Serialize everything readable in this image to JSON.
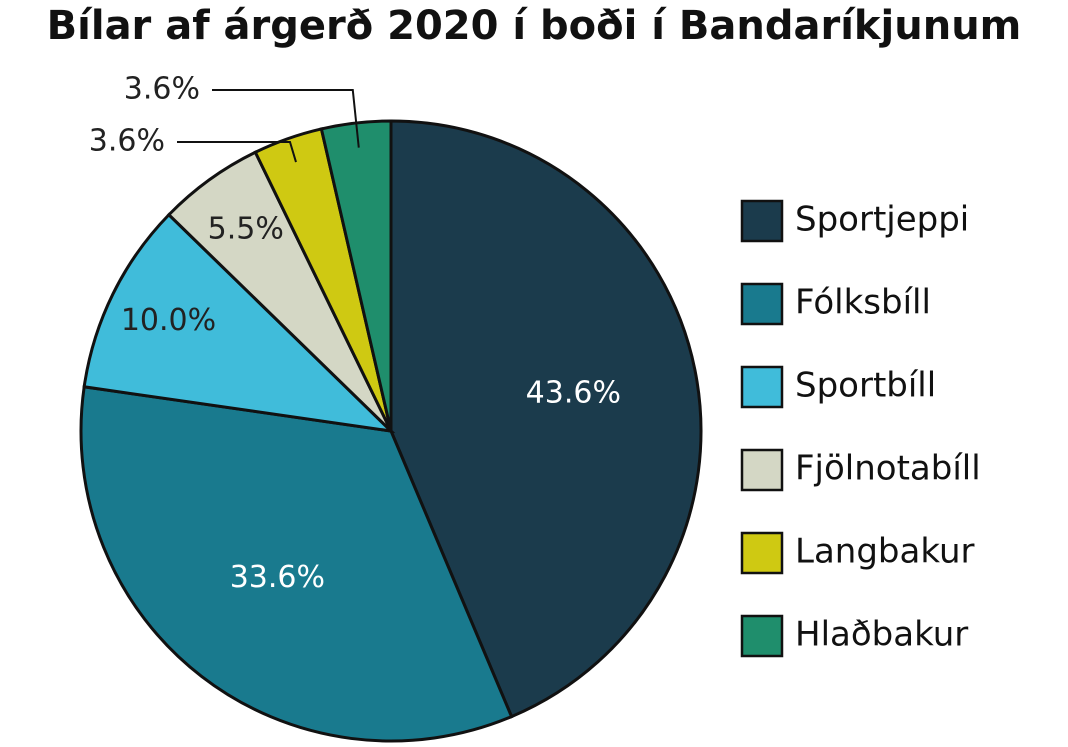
{
  "chart_data": {
    "type": "pie",
    "title": "Bílar af árgerð 2020 í boði í Bandaríkjunum",
    "categories": [
      "Sportjeppi",
      "Fólksbíll",
      "Sportbíll",
      "Fjölnotabíll",
      "Langbakur",
      "Hlaðbakur"
    ],
    "values": [
      43.6,
      33.6,
      10.0,
      5.5,
      3.6,
      3.6
    ],
    "value_labels": [
      "43.6%",
      "33.6%",
      "10.0%",
      "5.5%",
      "3.6%",
      "3.6%"
    ],
    "colors": [
      "#1b3b4c",
      "#197a8e",
      "#40bcda",
      "#d4d7c5",
      "#cfc912",
      "#1f8e6c"
    ],
    "legend": "right"
  }
}
